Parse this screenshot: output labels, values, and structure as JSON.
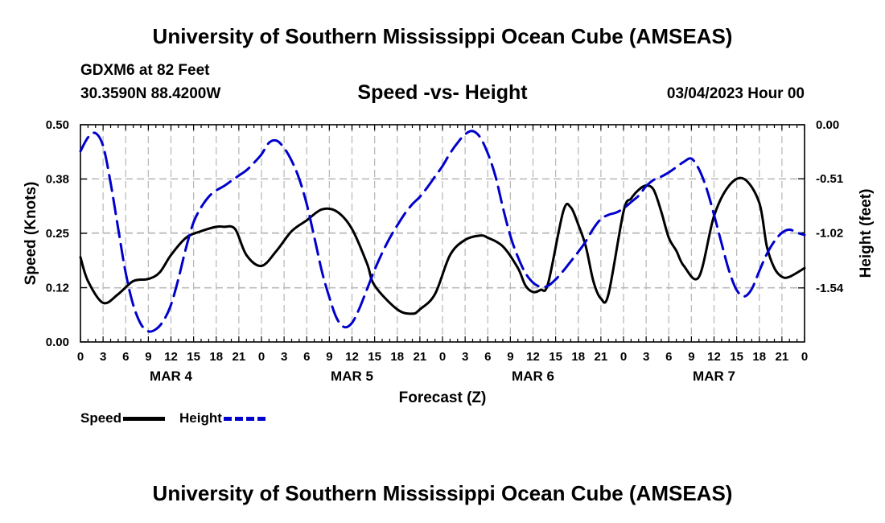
{
  "header": {
    "title": "University of Southern Mississippi Ocean Cube (AMSEAS)",
    "station": "GDXM6 at 82 Feet",
    "coords": "30.3590N  88.4200W",
    "subtitle": "Speed -vs- Height",
    "date": "03/04/2023 Hour 00"
  },
  "footer": {
    "title": "University of Southern Mississippi Ocean Cube (AMSEAS)"
  },
  "legend": {
    "speed_label": "Speed",
    "height_label": "Height"
  },
  "colors": {
    "speed": "#000000",
    "height": "#0000cc",
    "grid": "#bbbbbb"
  },
  "chart_data": {
    "type": "line",
    "xlabel": "Forecast (Z)",
    "ylabel_left": "Speed (Knots)",
    "ylabel_right": "Height (feet)",
    "xlim": [
      0,
      96
    ],
    "x_ticks": [
      0,
      3,
      6,
      9,
      12,
      15,
      18,
      21,
      24,
      27,
      30,
      33,
      36,
      39,
      42,
      45,
      48,
      51,
      54,
      57,
      60,
      63,
      66,
      69,
      72,
      75,
      78,
      81,
      84,
      87,
      90,
      93,
      96
    ],
    "x_tick_labels": [
      "0",
      "3",
      "6",
      "9",
      "12",
      "15",
      "18",
      "21",
      "0",
      "3",
      "6",
      "9",
      "12",
      "15",
      "18",
      "21",
      "0",
      "3",
      "6",
      "9",
      "12",
      "15",
      "18",
      "21",
      "0",
      "3",
      "6",
      "9",
      "12",
      "15",
      "18",
      "21",
      "0"
    ],
    "day_labels": [
      {
        "label": "MAR 4",
        "x": 12
      },
      {
        "label": "MAR 5",
        "x": 36
      },
      {
        "label": "MAR 6",
        "x": 60
      },
      {
        "label": "MAR 7",
        "x": 84
      }
    ],
    "ylim_left": [
      0,
      0.5
    ],
    "y_ticks_left": [
      0,
      0.125,
      0.25,
      0.375,
      0.5
    ],
    "y_tick_labels_left": [
      "0.00",
      "0.12",
      "0.25",
      "0.38",
      "0.50"
    ],
    "ylim_right": [
      -2.05,
      0
    ],
    "y_ticks_right": [
      -1.54,
      -1.02,
      -0.51,
      0
    ],
    "y_tick_labels_right": [
      "-1.54",
      "-1.02",
      "-0.51",
      "0.00"
    ],
    "series": [
      {
        "name": "Speed",
        "axis": "left",
        "style": "solid",
        "x": [
          0,
          1,
          3,
          5,
          7,
          9,
          10.5,
          12,
          14,
          16,
          18,
          19,
          20.5,
          22,
          24,
          26,
          28,
          30,
          32,
          34,
          36,
          38,
          39,
          42,
          44,
          45,
          47,
          49,
          51,
          53,
          54,
          56,
          58,
          59,
          60,
          61,
          62,
          64,
          65,
          66,
          67,
          68,
          69,
          70,
          72,
          73,
          74,
          75,
          76,
          77,
          78,
          79,
          80,
          82,
          84,
          86,
          88,
          90,
          91,
          92,
          93,
          94,
          96
        ],
        "y": [
          0.195,
          0.14,
          0.09,
          0.11,
          0.14,
          0.145,
          0.16,
          0.2,
          0.24,
          0.255,
          0.265,
          0.265,
          0.26,
          0.2,
          0.175,
          0.21,
          0.255,
          0.28,
          0.305,
          0.3,
          0.26,
          0.18,
          0.13,
          0.075,
          0.065,
          0.075,
          0.11,
          0.2,
          0.235,
          0.245,
          0.24,
          0.22,
          0.17,
          0.13,
          0.115,
          0.12,
          0.135,
          0.3,
          0.31,
          0.27,
          0.22,
          0.14,
          0.1,
          0.11,
          0.3,
          0.33,
          0.35,
          0.36,
          0.35,
          0.3,
          0.24,
          0.21,
          0.175,
          0.15,
          0.29,
          0.36,
          0.375,
          0.32,
          0.22,
          0.17,
          0.15,
          0.15,
          0.17
        ]
      },
      {
        "name": "Height",
        "axis": "right",
        "style": "dashed",
        "x": [
          0,
          1,
          2,
          3,
          4,
          5,
          6,
          7,
          8,
          9,
          10,
          11,
          12,
          13,
          14,
          15,
          16,
          17,
          18,
          19,
          20,
          21,
          22,
          23,
          24,
          25,
          26,
          27,
          28,
          29,
          30,
          31,
          32,
          33,
          34,
          35,
          36,
          37,
          38,
          39,
          40,
          41,
          42,
          43,
          44,
          45,
          46,
          47,
          48,
          49,
          50,
          51,
          52,
          53,
          54,
          55,
          56,
          57,
          58,
          59,
          60,
          61,
          62,
          63,
          64,
          65,
          66,
          67,
          68,
          69,
          70,
          71,
          72,
          73,
          74,
          75,
          76,
          77,
          78,
          79,
          80,
          81,
          82,
          83,
          84,
          85,
          86,
          87,
          88,
          89,
          90,
          91,
          92,
          93,
          94,
          95,
          96
        ],
        "y": [
          -0.25,
          -0.12,
          -0.08,
          -0.2,
          -0.55,
          -0.98,
          -1.4,
          -1.7,
          -1.88,
          -1.95,
          -1.93,
          -1.85,
          -1.7,
          -1.45,
          -1.16,
          -0.92,
          -0.78,
          -0.68,
          -0.62,
          -0.58,
          -0.53,
          -0.48,
          -0.43,
          -0.36,
          -0.28,
          -0.17,
          -0.15,
          -0.22,
          -0.34,
          -0.51,
          -0.75,
          -1.06,
          -1.38,
          -1.63,
          -1.83,
          -1.91,
          -1.87,
          -1.73,
          -1.55,
          -1.37,
          -1.21,
          -1.07,
          -0.95,
          -0.84,
          -0.75,
          -0.68,
          -0.59,
          -0.49,
          -0.39,
          -0.27,
          -0.17,
          -0.09,
          -0.06,
          -0.12,
          -0.27,
          -0.48,
          -0.78,
          -1.05,
          -1.25,
          -1.4,
          -1.49,
          -1.53,
          -1.52,
          -1.46,
          -1.38,
          -1.29,
          -1.2,
          -1.1,
          -0.98,
          -0.89,
          -0.85,
          -0.83,
          -0.79,
          -0.73,
          -0.67,
          -0.58,
          -0.52,
          -0.49,
          -0.45,
          -0.4,
          -0.35,
          -0.32,
          -0.42,
          -0.6,
          -0.85,
          -1.12,
          -1.38,
          -1.56,
          -1.62,
          -1.55,
          -1.38,
          -1.22,
          -1.1,
          -1.02,
          -0.99,
          -1.02,
          -1.04
        ]
      }
    ]
  }
}
